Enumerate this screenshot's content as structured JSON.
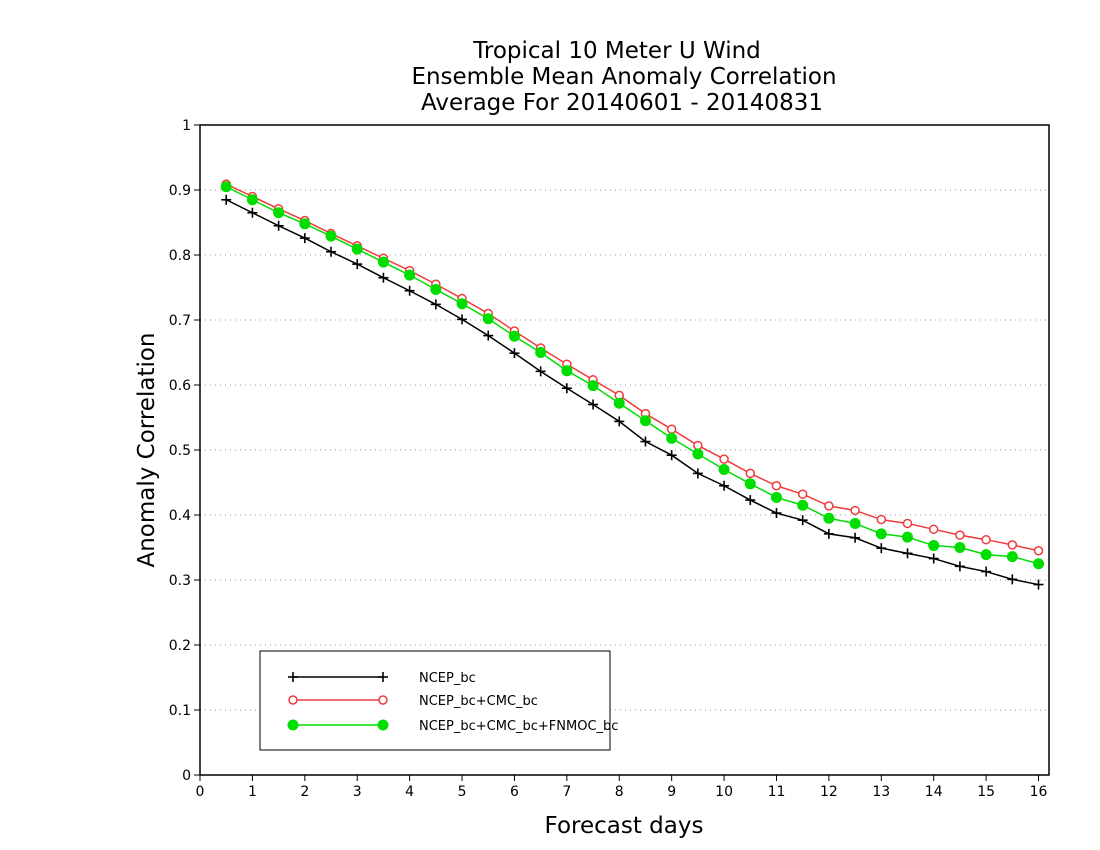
{
  "chart_data": {
    "type": "line",
    "title": [
      "Tropical 10 Meter U Wind",
      "Ensemble Mean Anomaly Correlation",
      "Average For 20140601 - 20140831"
    ],
    "xlabel": "Forecast days",
    "ylabel": "Anomaly Correlation",
    "xlim": [
      0,
      16.2
    ],
    "ylim": [
      0,
      1
    ],
    "xticks": [
      "0",
      "1",
      "2",
      "3",
      "4",
      "5",
      "6",
      "7",
      "8",
      "9",
      "10",
      "11",
      "12",
      "13",
      "14",
      "15",
      "16"
    ],
    "yticks": [
      "0",
      "0.1",
      "0.2",
      "0.3",
      "0.4",
      "0.5",
      "0.6",
      "0.7",
      "0.8",
      "0.9",
      "1"
    ],
    "grid": "horizontal dotted",
    "legend_position": "lower-left",
    "x": [
      0.5,
      1,
      1.5,
      2,
      2.5,
      3,
      3.5,
      4,
      4.5,
      5,
      5.5,
      6,
      6.5,
      7,
      7.5,
      8,
      8.5,
      9,
      9.5,
      10,
      10.5,
      11,
      11.5,
      12,
      12.5,
      13,
      13.5,
      14,
      14.5,
      15,
      15.5,
      16
    ],
    "series": [
      {
        "name": "NCEP_bc",
        "color": "#000000",
        "marker": "plus",
        "values": [
          0.885,
          0.865,
          0.845,
          0.826,
          0.805,
          0.786,
          0.765,
          0.745,
          0.724,
          0.701,
          0.676,
          0.649,
          0.621,
          0.595,
          0.57,
          0.544,
          0.513,
          0.492,
          0.464,
          0.445,
          0.423,
          0.403,
          0.392,
          0.371,
          0.365,
          0.349,
          0.341,
          0.333,
          0.321,
          0.313,
          0.301,
          0.293
        ]
      },
      {
        "name": "NCEP_bc+CMC_bc",
        "color": "#ee3b3b",
        "marker": "open-circle",
        "values": [
          0.909,
          0.89,
          0.871,
          0.853,
          0.833,
          0.814,
          0.795,
          0.776,
          0.755,
          0.733,
          0.71,
          0.683,
          0.657,
          0.632,
          0.608,
          0.584,
          0.556,
          0.532,
          0.507,
          0.486,
          0.464,
          0.445,
          0.432,
          0.414,
          0.407,
          0.393,
          0.387,
          0.378,
          0.369,
          0.362,
          0.354,
          0.345
        ]
      },
      {
        "name": "NCEP_bc+CMC_bc+FNMOC_bc",
        "color": "#00dd00",
        "marker": "filled-circle",
        "values": [
          0.905,
          0.885,
          0.865,
          0.848,
          0.829,
          0.809,
          0.789,
          0.769,
          0.747,
          0.725,
          0.702,
          0.675,
          0.65,
          0.622,
          0.599,
          0.572,
          0.545,
          0.518,
          0.494,
          0.47,
          0.448,
          0.427,
          0.415,
          0.395,
          0.387,
          0.371,
          0.366,
          0.353,
          0.35,
          0.339,
          0.336,
          0.325
        ]
      }
    ]
  }
}
